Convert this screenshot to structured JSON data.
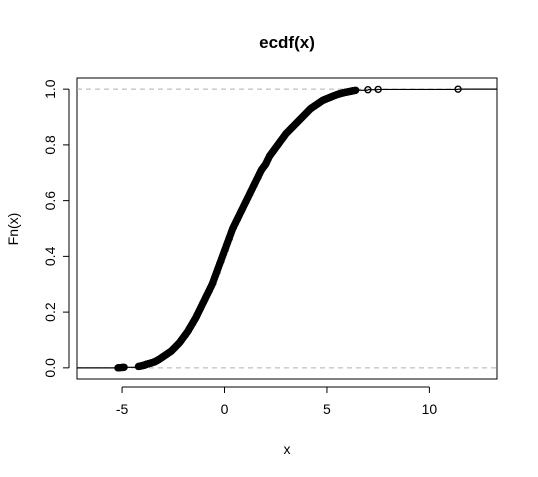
{
  "chart_data": {
    "type": "scatter",
    "title": "ecdf(x)",
    "xlabel": "x",
    "ylabel": "Fn(x)",
    "xlim": [
      -7.2,
      13.3
    ],
    "ylim": [
      -0.04,
      1.04
    ],
    "xticks": [
      -5,
      0,
      5,
      10
    ],
    "xtick_labels": [
      "-5",
      "0",
      "5",
      "10"
    ],
    "yticks": [
      0.0,
      0.2,
      0.4,
      0.6,
      0.8,
      1.0
    ],
    "ytick_labels": [
      "0.0",
      "0.2",
      "0.4",
      "0.6",
      "0.8",
      "1.0"
    ],
    "reference_lines": [
      0.0,
      1.0
    ],
    "grid": false,
    "legend": "none",
    "point_color": "#000000",
    "reference_line_color": "#b0b0b0",
    "series": [
      {
        "x": [
          -5.2,
          -4.9,
          -4.2,
          -4.0,
          -3.9,
          -3.8,
          -3.6,
          -3.4,
          -3.2,
          -3.0,
          -2.8,
          -2.6,
          -2.4,
          -2.2,
          -2.0,
          -1.8,
          -1.6,
          -1.4,
          -1.2,
          -1.0,
          -0.8,
          -0.6,
          -0.4,
          -0.2,
          0.0,
          0.2,
          0.4,
          0.6,
          0.8,
          1.0,
          1.2,
          1.4,
          1.6,
          1.8,
          2.0,
          2.2,
          2.4,
          2.6,
          2.8,
          3.0,
          3.2,
          3.4,
          3.6,
          3.8,
          4.0,
          4.2,
          4.4,
          4.6,
          4.8,
          5.0,
          5.2,
          5.4,
          5.6,
          5.8,
          6.0,
          6.2,
          6.4,
          7.0,
          7.5,
          11.4
        ],
        "y": [
          0.0,
          0.002,
          0.005,
          0.008,
          0.01,
          0.013,
          0.017,
          0.022,
          0.03,
          0.04,
          0.05,
          0.06,
          0.075,
          0.09,
          0.11,
          0.13,
          0.155,
          0.18,
          0.21,
          0.24,
          0.27,
          0.3,
          0.34,
          0.38,
          0.42,
          0.46,
          0.5,
          0.53,
          0.56,
          0.59,
          0.62,
          0.65,
          0.68,
          0.71,
          0.73,
          0.76,
          0.78,
          0.8,
          0.82,
          0.84,
          0.855,
          0.87,
          0.885,
          0.9,
          0.915,
          0.93,
          0.94,
          0.95,
          0.96,
          0.966,
          0.972,
          0.978,
          0.983,
          0.987,
          0.99,
          0.993,
          0.996,
          0.998,
          0.999,
          1.0
        ]
      }
    ]
  }
}
